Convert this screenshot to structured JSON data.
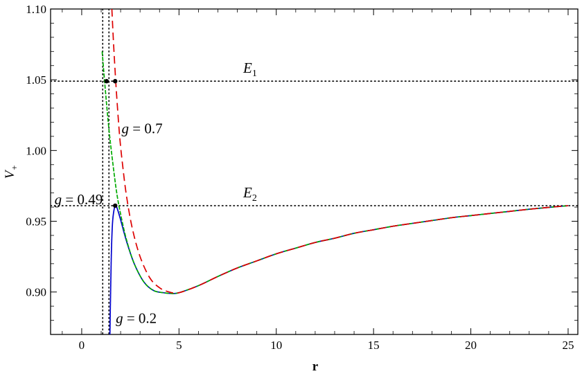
{
  "chart_data": {
    "type": "line",
    "xlabel": "r",
    "ylabel": "V",
    "ylabel_sub": "+",
    "xlim": [
      -1.6,
      25.5
    ],
    "ylim": [
      0.87,
      1.1
    ],
    "x_ticks": [
      0,
      5,
      10,
      15,
      20,
      25
    ],
    "x_tick_labels": [
      "0",
      "5",
      "10",
      "15",
      "20",
      "25"
    ],
    "y_ticks": [
      0.9,
      0.95,
      1.0,
      1.05,
      1.1
    ],
    "y_tick_labels": [
      "0.90",
      "0.95",
      "1.00",
      "1.05",
      "1.10"
    ],
    "grid": false,
    "series": [
      {
        "name": "g = 0.2",
        "color": "#0000cc",
        "style": "solid",
        "x": [
          1.45,
          1.48,
          1.52,
          1.58,
          1.66,
          1.75,
          1.85,
          2.0,
          2.3,
          2.7,
          3.2,
          3.7,
          4.2,
          4.6,
          5.0,
          6.0,
          7.0,
          8.0,
          9.0,
          10.0,
          11.0,
          12.0,
          13.0,
          14.0,
          15.0,
          16.0,
          17.0,
          18.0,
          19.0,
          20.0,
          21.0,
          22.0,
          23.0,
          24.0,
          25.0
        ],
        "y": [
          0.87,
          0.895,
          0.925,
          0.948,
          0.958,
          0.961,
          0.958,
          0.951,
          0.936,
          0.92,
          0.907,
          0.901,
          0.8995,
          0.899,
          0.8995,
          0.9045,
          0.911,
          0.917,
          0.922,
          0.927,
          0.931,
          0.935,
          0.938,
          0.9415,
          0.944,
          0.9465,
          0.9485,
          0.9505,
          0.9525,
          0.954,
          0.9555,
          0.957,
          0.9585,
          0.9598,
          0.961
        ]
      },
      {
        "name": "g = 0.49",
        "color": "#00aa00",
        "style": "dashed",
        "x": [
          1.05,
          1.2,
          1.4,
          1.6,
          1.8,
          2.0,
          2.3,
          2.7,
          3.2,
          3.7,
          4.2,
          4.6,
          5.0,
          6.0,
          7.0,
          8.0,
          9.0,
          10.0,
          11.0,
          12.0,
          13.0,
          14.0,
          15.0,
          16.0,
          17.0,
          18.0,
          19.0,
          20.0,
          21.0,
          22.0,
          23.0,
          24.0,
          25.0
        ],
        "y": [
          1.07,
          1.045,
          1.015,
          0.991,
          0.97,
          0.955,
          0.937,
          0.92,
          0.907,
          0.901,
          0.8995,
          0.899,
          0.8995,
          0.9045,
          0.911,
          0.917,
          0.922,
          0.927,
          0.931,
          0.935,
          0.938,
          0.9415,
          0.944,
          0.9465,
          0.9485,
          0.9505,
          0.9525,
          0.954,
          0.9555,
          0.957,
          0.9585,
          0.9598,
          0.961
        ]
      },
      {
        "name": "g = 0.7",
        "color": "#dd0000",
        "style": "dashed",
        "x": [
          1.55,
          1.62,
          1.7,
          1.8,
          1.95,
          2.1,
          2.3,
          2.6,
          3.0,
          3.5,
          4.0,
          4.5,
          5.0,
          6.0,
          7.0,
          8.0,
          9.0,
          10.0,
          11.0,
          12.0,
          13.0,
          14.0,
          15.0,
          16.0,
          17.0,
          18.0,
          19.0,
          20.0,
          21.0,
          22.0,
          23.0,
          24.0,
          25.0
        ],
        "y": [
          1.1,
          1.08,
          1.06,
          1.038,
          1.01,
          0.99,
          0.968,
          0.945,
          0.925,
          0.91,
          0.903,
          0.9,
          0.8995,
          0.9045,
          0.911,
          0.917,
          0.922,
          0.927,
          0.931,
          0.935,
          0.938,
          0.9415,
          0.944,
          0.9465,
          0.9485,
          0.9505,
          0.9525,
          0.954,
          0.9555,
          0.957,
          0.9585,
          0.9598,
          0.961
        ]
      }
    ],
    "reference_lines": {
      "horizontal": [
        {
          "label": "E",
          "sub": "1",
          "y": 1.049,
          "label_x": 8.3
        },
        {
          "label": "E",
          "sub": "2",
          "y": 0.961,
          "label_x": 8.3
        }
      ],
      "vertical": [
        1.08,
        1.4
      ]
    },
    "points": [
      {
        "x": 1.28,
        "y": 1.049
      },
      {
        "x": 1.72,
        "y": 1.049
      },
      {
        "x": 1.72,
        "y": 0.961
      }
    ],
    "annotations": [
      {
        "var": "g",
        "text": " = 0.7",
        "x": 2.05,
        "y": 1.016
      },
      {
        "var": "g",
        "text": " = 0.49",
        "x": -1.4,
        "y": 0.966
      },
      {
        "var": "g",
        "text": " = 0.2",
        "x": 1.75,
        "y": 0.882
      }
    ]
  }
}
